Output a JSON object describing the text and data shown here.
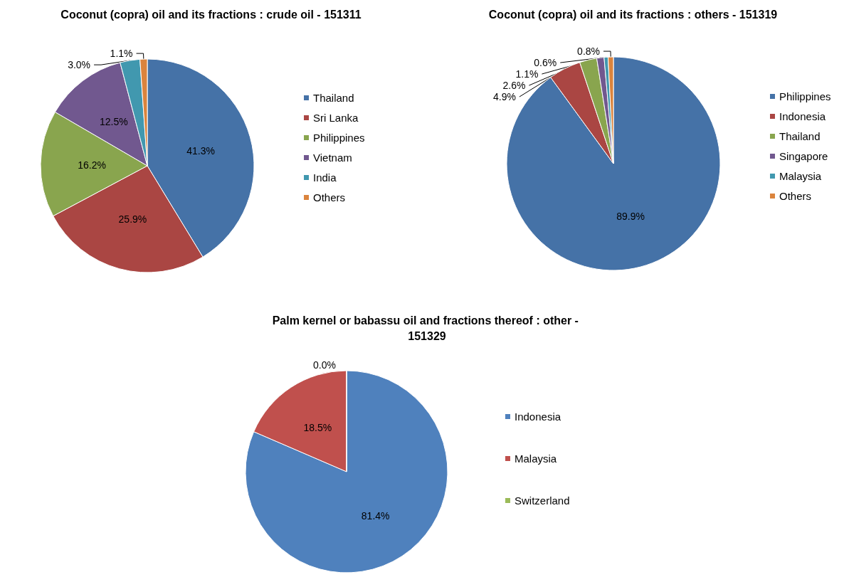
{
  "chart_data": [
    {
      "type": "pie",
      "title": "Coconut (copra) oil and its fractions : crude oil - 151311",
      "categories": [
        "Thailand",
        "Sri Lanka",
        "Philippines",
        "Vietnam",
        "India",
        "Others"
      ],
      "values": [
        41.3,
        25.9,
        16.2,
        12.5,
        3.0,
        1.1
      ],
      "value_labels": [
        "41.3%",
        "25.9%",
        "16.2%",
        "12.5%",
        "3.0%",
        "1.1%"
      ],
      "colors": [
        "#4572a7",
        "#aa4643",
        "#89a54e",
        "#71588f",
        "#4198af",
        "#db843d"
      ],
      "legend": "right"
    },
    {
      "type": "pie",
      "title": "Coconut (copra) oil and its fractions : others - 151319",
      "categories": [
        "Philippines",
        "Indonesia",
        "Thailand",
        "Singapore",
        "Malaysia",
        "Others"
      ],
      "values": [
        89.9,
        4.9,
        2.6,
        1.1,
        0.6,
        0.8
      ],
      "value_labels": [
        "89.9%",
        "4.9%",
        "2.6%",
        "1.1%",
        "0.6%",
        "0.8%"
      ],
      "colors": [
        "#4572a7",
        "#aa4643",
        "#89a54e",
        "#71588f",
        "#4198af",
        "#db843d"
      ],
      "legend": "right"
    },
    {
      "type": "pie",
      "title": "Palm kernel or babassu oil and fractions thereof : other - 151329",
      "categories": [
        "Indonesia",
        "Malaysia",
        "Switzerland"
      ],
      "values": [
        81.4,
        18.5,
        0.0
      ],
      "value_labels": [
        "81.4%",
        "18.5%",
        "0.0%"
      ],
      "colors": [
        "#4f81bd",
        "#c0504d",
        "#9bbb59"
      ],
      "legend": "right"
    }
  ]
}
